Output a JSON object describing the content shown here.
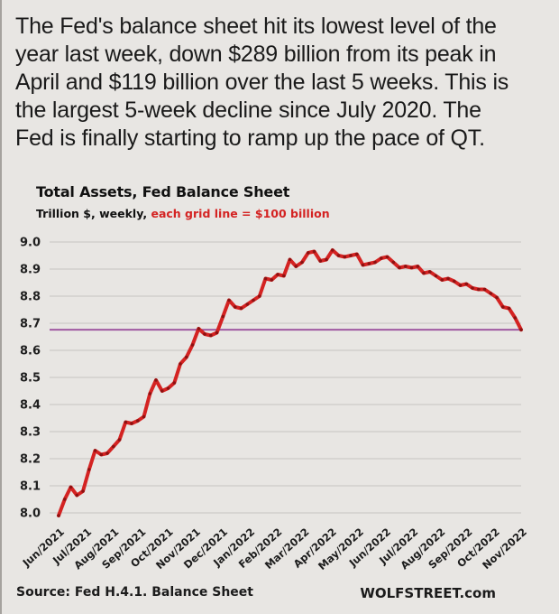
{
  "headline": "The Fed's balance sheet hit its lowest level of the\nyear last week, down $289 billion from its peak in\nApril and $119 billion over the last 5 weeks. This is\nthe largest 5-week decline since July 2020. The\nFed is finally starting to ramp up the pace of QT.",
  "chart": {
    "title": "Total Assets, Fed Balance Sheet",
    "subtitle_black": "Trillion $, weekly, ",
    "subtitle_red": "each grid line = $100 billion"
  },
  "footer": {
    "source": "Source: Fed H.4.1. Balance Sheet",
    "brand": "WOLFSTREET.com"
  },
  "chart_data": {
    "type": "line",
    "title": "Total Assets, Fed Balance Sheet",
    "subtitle": "Trillion $, weekly, each grid line = $100 billion",
    "unit": "trillion $",
    "ylim": [
      8.0,
      9.0
    ],
    "y_ticks": [
      "9.0",
      "8.9",
      "8.8",
      "8.7",
      "8.6",
      "8.5",
      "8.4",
      "8.3",
      "8.2",
      "8.1",
      "8.0"
    ],
    "x_labels": [
      "Jun/2021",
      "Jul/2021",
      "Aug/2021",
      "Sep/2021",
      "Oct/2021",
      "Nov/2021",
      "Dec/2021",
      "Jan/2022",
      "Feb/2022",
      "Mar/2022",
      "Apr/2022",
      "May/2022",
      "Jun/2022",
      "Jul/2022",
      "Aug/2022",
      "Sep/2022",
      "Oct/2022",
      "Nov/2022"
    ],
    "grid": "horizontal",
    "legend": "none",
    "line_color": "#d42322",
    "marker_color": "#8d1111",
    "grid_color": "#c6c4c2",
    "reference_line": {
      "value": 8.676,
      "color": "#9b4f9d"
    },
    "series": [
      {
        "name": "Fed total assets, weekly",
        "values": [
          7.99,
          8.05,
          8.095,
          8.065,
          8.08,
          8.16,
          8.23,
          8.215,
          8.22,
          8.245,
          8.27,
          8.335,
          8.33,
          8.34,
          8.355,
          8.44,
          8.49,
          8.45,
          8.46,
          8.48,
          8.55,
          8.575,
          8.62,
          8.68,
          8.66,
          8.655,
          8.665,
          8.725,
          8.785,
          8.76,
          8.755,
          8.77,
          8.785,
          8.8,
          8.865,
          8.86,
          8.88,
          8.875,
          8.935,
          8.91,
          8.925,
          8.96,
          8.965,
          8.93,
          8.935,
          8.97,
          8.95,
          8.945,
          8.95,
          8.955,
          8.915,
          8.92,
          8.925,
          8.94,
          8.945,
          8.925,
          8.905,
          8.91,
          8.905,
          8.91,
          8.885,
          8.89,
          8.875,
          8.86,
          8.865,
          8.855,
          8.84,
          8.845,
          8.83,
          8.825,
          8.825,
          8.81,
          8.795,
          8.76,
          8.755,
          8.72,
          8.676
        ]
      }
    ]
  }
}
